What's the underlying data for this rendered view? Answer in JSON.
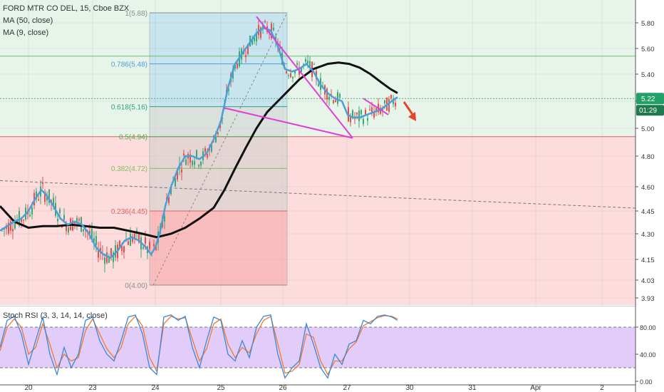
{
  "legend": {
    "symbol_line": "FORD MTR CO DEL, 15, Cboe BZX",
    "ma50": "MA (50, close)",
    "ma9": "MA (9, close)"
  },
  "indicator": {
    "label": "Stoch RSI (3, 3, 14, 14, close)"
  },
  "price_badges": {
    "last": "5.22",
    "timer": "01:29"
  },
  "colors": {
    "green_zone": "#e6f4e9",
    "red_zone": "#fcdcdc",
    "blue_band": "#c8e4ee",
    "fib_box": "#d3d3d3",
    "ma9": "#4a9fd8",
    "ma50": "#111111",
    "trendlines": "#e040d8",
    "arrow": "#e8412c",
    "badge_green": "#21a068",
    "badge_dark": "#1f7a50",
    "stoch_k": "#3c86d8",
    "stoch_d": "#ef7a2e",
    "stoch_band": "#e2cdfa"
  },
  "chart_data": {
    "type": "candlestick",
    "x_ticks": [
      "20",
      "23",
      "24",
      "25",
      "26",
      "27",
      "30",
      "31",
      "Apr",
      "2"
    ],
    "y_ticks": [
      "5.80",
      "5.60",
      "5.40",
      "5.20",
      "5.00",
      "4.80",
      "4.60",
      "4.45",
      "4.30",
      "4.15",
      "4.03",
      "3.93"
    ],
    "ylim": [
      3.93,
      5.88
    ],
    "fibonacci": [
      {
        "label": "1(5.88)",
        "value": 5.88
      },
      {
        "label": "0.786(5.48)",
        "value": 5.48
      },
      {
        "label": "0.618(5.16)",
        "value": 5.16
      },
      {
        "label": "0.5(4.94)",
        "value": 4.94
      },
      {
        "label": "0.382(4.72)",
        "value": 4.72
      },
      {
        "label": "0.236(4.45)",
        "value": 4.45
      },
      {
        "label": "0(4.00)",
        "value": 4.0
      }
    ],
    "horizontal_lines": [
      5.54,
      5.22,
      4.94
    ],
    "ma9_series": [
      [
        0,
        4.32
      ],
      [
        10,
        4.35
      ],
      [
        20,
        4.38
      ],
      [
        30,
        4.4
      ],
      [
        40,
        4.45
      ],
      [
        50,
        4.53
      ],
      [
        58,
        4.58
      ],
      [
        65,
        4.55
      ],
      [
        75,
        4.48
      ],
      [
        85,
        4.4
      ],
      [
        95,
        4.36
      ],
      [
        105,
        4.38
      ],
      [
        115,
        4.36
      ],
      [
        125,
        4.3
      ],
      [
        135,
        4.22
      ],
      [
        145,
        4.18
      ],
      [
        155,
        4.16
      ],
      [
        165,
        4.2
      ],
      [
        175,
        4.26
      ],
      [
        185,
        4.28
      ],
      [
        195,
        4.26
      ],
      [
        205,
        4.22
      ],
      [
        212,
        4.18
      ],
      [
        218,
        4.22
      ],
      [
        225,
        4.32
      ],
      [
        232,
        4.48
      ],
      [
        240,
        4.6
      ],
      [
        250,
        4.72
      ],
      [
        260,
        4.8
      ],
      [
        270,
        4.8
      ],
      [
        280,
        4.78
      ],
      [
        290,
        4.82
      ],
      [
        300,
        4.92
      ],
      [
        310,
        5.05
      ],
      [
        320,
        5.3
      ],
      [
        330,
        5.48
      ],
      [
        340,
        5.56
      ],
      [
        350,
        5.64
      ],
      [
        360,
        5.72
      ],
      [
        370,
        5.76
      ],
      [
        380,
        5.74
      ],
      [
        390,
        5.62
      ],
      [
        400,
        5.44
      ],
      [
        410,
        5.42
      ],
      [
        420,
        5.44
      ],
      [
        430,
        5.48
      ],
      [
        440,
        5.42
      ],
      [
        450,
        5.32
      ],
      [
        460,
        5.26
      ],
      [
        470,
        5.22
      ],
      [
        480,
        5.2
      ],
      [
        488,
        5.1
      ],
      [
        495,
        5.08
      ],
      [
        505,
        5.08
      ],
      [
        515,
        5.1
      ],
      [
        525,
        5.12
      ],
      [
        535,
        5.14
      ],
      [
        545,
        5.18
      ],
      [
        555,
        5.22
      ],
      [
        558,
        5.23
      ]
    ],
    "ma50_series": [
      [
        0,
        4.48
      ],
      [
        20,
        4.38
      ],
      [
        40,
        4.34
      ],
      [
        60,
        4.35
      ],
      [
        80,
        4.35
      ],
      [
        100,
        4.36
      ],
      [
        120,
        4.35
      ],
      [
        140,
        4.34
      ],
      [
        160,
        4.34
      ],
      [
        180,
        4.32
      ],
      [
        200,
        4.3
      ],
      [
        220,
        4.28
      ],
      [
        240,
        4.3
      ],
      [
        260,
        4.34
      ],
      [
        280,
        4.4
      ],
      [
        300,
        4.47
      ],
      [
        315,
        4.58
      ],
      [
        330,
        4.72
      ],
      [
        345,
        4.86
      ],
      [
        360,
        5.0
      ],
      [
        375,
        5.12
      ],
      [
        390,
        5.2
      ],
      [
        405,
        5.28
      ],
      [
        420,
        5.36
      ],
      [
        440,
        5.44
      ],
      [
        460,
        5.48
      ],
      [
        475,
        5.49
      ],
      [
        490,
        5.48
      ],
      [
        505,
        5.45
      ],
      [
        520,
        5.4
      ],
      [
        535,
        5.34
      ],
      [
        548,
        5.29
      ],
      [
        558,
        5.26
      ]
    ],
    "trendlines": [
      [
        [
          360,
          5.85
        ],
        [
          495,
          4.93
        ]
      ],
      [
        [
          315,
          5.15
        ],
        [
          495,
          4.93
        ]
      ],
      [
        [
          510,
          5.22
        ],
        [
          545,
          5.1
        ]
      ]
    ],
    "fib_anchor_dashed": [
      [
        215,
        4.0
      ],
      [
        403,
        5.88
      ]
    ],
    "long_dashed_line": [
      [
        0,
        4.64
      ],
      [
        932,
        4.46
      ]
    ],
    "stoch_rsi": {
      "ylim": [
        0,
        100
      ],
      "y_ticks": [
        "80.00",
        "40.00",
        "0.00"
      ],
      "bands": [
        20,
        80
      ],
      "k": [
        [
          0,
          50
        ],
        [
          10,
          90
        ],
        [
          20,
          96
        ],
        [
          30,
          70
        ],
        [
          40,
          25
        ],
        [
          50,
          60
        ],
        [
          60,
          95
        ],
        [
          70,
          40
        ],
        [
          80,
          10
        ],
        [
          90,
          50
        ],
        [
          100,
          20
        ],
        [
          110,
          40
        ],
        [
          120,
          90
        ],
        [
          130,
          95
        ],
        [
          140,
          60
        ],
        [
          150,
          40
        ],
        [
          160,
          30
        ],
        [
          170,
          60
        ],
        [
          180,
          95
        ],
        [
          190,
          98
        ],
        [
          200,
          70
        ],
        [
          210,
          20
        ],
        [
          220,
          10
        ],
        [
          230,
          95
        ],
        [
          240,
          98
        ],
        [
          250,
          90
        ],
        [
          260,
          96
        ],
        [
          270,
          50
        ],
        [
          280,
          20
        ],
        [
          290,
          60
        ],
        [
          300,
          95
        ],
        [
          310,
          90
        ],
        [
          320,
          40
        ],
        [
          330,
          30
        ],
        [
          340,
          60
        ],
        [
          350,
          35
        ],
        [
          360,
          80
        ],
        [
          370,
          96
        ],
        [
          380,
          98
        ],
        [
          390,
          40
        ],
        [
          400,
          5
        ],
        [
          410,
          20
        ],
        [
          420,
          30
        ],
        [
          430,
          85
        ],
        [
          440,
          55
        ],
        [
          450,
          20
        ],
        [
          460,
          5
        ],
        [
          470,
          40
        ],
        [
          480,
          25
        ],
        [
          490,
          55
        ],
        [
          500,
          60
        ],
        [
          510,
          90
        ],
        [
          520,
          85
        ],
        [
          530,
          96
        ],
        [
          540,
          98
        ],
        [
          550,
          95
        ],
        [
          558,
          90
        ]
      ],
      "d": [
        [
          0,
          45
        ],
        [
          10,
          80
        ],
        [
          20,
          92
        ],
        [
          30,
          80
        ],
        [
          40,
          40
        ],
        [
          50,
          50
        ],
        [
          60,
          85
        ],
        [
          70,
          55
        ],
        [
          80,
          20
        ],
        [
          90,
          40
        ],
        [
          100,
          30
        ],
        [
          110,
          35
        ],
        [
          120,
          75
        ],
        [
          130,
          92
        ],
        [
          140,
          70
        ],
        [
          150,
          48
        ],
        [
          160,
          35
        ],
        [
          170,
          50
        ],
        [
          180,
          85
        ],
        [
          190,
          96
        ],
        [
          200,
          82
        ],
        [
          210,
          35
        ],
        [
          220,
          15
        ],
        [
          230,
          85
        ],
        [
          240,
          96
        ],
        [
          250,
          92
        ],
        [
          260,
          94
        ],
        [
          270,
          62
        ],
        [
          280,
          30
        ],
        [
          290,
          48
        ],
        [
          300,
          85
        ],
        [
          310,
          92
        ],
        [
          320,
          55
        ],
        [
          330,
          35
        ],
        [
          340,
          50
        ],
        [
          350,
          42
        ],
        [
          360,
          70
        ],
        [
          370,
          90
        ],
        [
          380,
          96
        ],
        [
          390,
          55
        ],
        [
          400,
          12
        ],
        [
          410,
          15
        ],
        [
          420,
          25
        ],
        [
          430,
          70
        ],
        [
          440,
          65
        ],
        [
          450,
          30
        ],
        [
          460,
          10
        ],
        [
          470,
          30
        ],
        [
          480,
          30
        ],
        [
          490,
          48
        ],
        [
          500,
          58
        ],
        [
          510,
          82
        ],
        [
          520,
          88
        ],
        [
          530,
          94
        ],
        [
          540,
          97
        ],
        [
          550,
          96
        ],
        [
          558,
          92
        ]
      ]
    }
  }
}
